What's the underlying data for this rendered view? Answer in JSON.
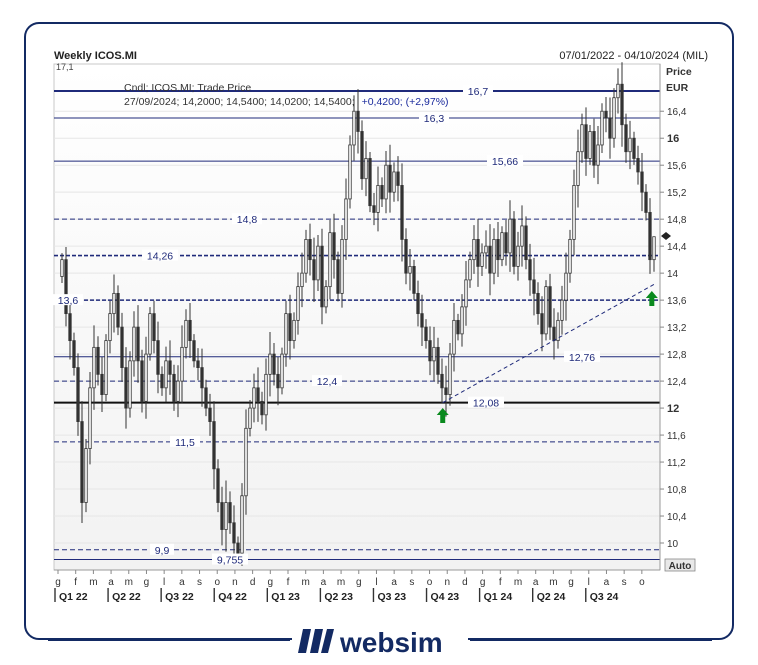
{
  "header": {
    "title": "Weekly ICOS.MI",
    "date_range": "07/01/2022 - 04/10/2024 (MIL)",
    "clipped_label": "17,1"
  },
  "info": {
    "line1": "Cndl; ICOS.MI; Trade Price",
    "line2_values": "27/09/2024; 14,2000; 14,5400; 14,0200; 14,5400;",
    "line2_change": "+0,4200; (+2,97%)"
  },
  "axis": {
    "price_label": "Price",
    "currency_label": "EUR",
    "auto_label": "Auto",
    "y_ticks": [
      {
        "label": "16,4",
        "value": 16.4,
        "bold": false
      },
      {
        "label": "16",
        "value": 16.0,
        "bold": true
      },
      {
        "label": "15,6",
        "value": 15.6,
        "bold": false
      },
      {
        "label": "15,2",
        "value": 15.2,
        "bold": false
      },
      {
        "label": "14,8",
        "value": 14.8,
        "bold": false
      },
      {
        "label": "14,4",
        "value": 14.4,
        "bold": false
      },
      {
        "label": "14",
        "value": 14.0,
        "bold": false
      },
      {
        "label": "13,6",
        "value": 13.6,
        "bold": false
      },
      {
        "label": "13,2",
        "value": 13.2,
        "bold": false
      },
      {
        "label": "12,8",
        "value": 12.8,
        "bold": false
      },
      {
        "label": "12,4",
        "value": 12.4,
        "bold": false
      },
      {
        "label": "12",
        "value": 12.0,
        "bold": true
      },
      {
        "label": "11,6",
        "value": 11.6,
        "bold": false
      },
      {
        "label": "11,2",
        "value": 11.2,
        "bold": false
      },
      {
        "label": "10,8",
        "value": 10.8,
        "bold": false
      },
      {
        "label": "10,4",
        "value": 10.4,
        "bold": false
      },
      {
        "label": "10",
        "value": 10.0,
        "bold": false
      }
    ],
    "months": [
      "g",
      "f",
      "m",
      "a",
      "m",
      "g",
      "l",
      "a",
      "s",
      "o",
      "n",
      "d",
      "g",
      "f",
      "m",
      "a",
      "m",
      "g",
      "l",
      "a",
      "s",
      "o",
      "n",
      "d",
      "g",
      "f",
      "m",
      "a",
      "m",
      "g",
      "l",
      "a",
      "s",
      "o"
    ],
    "quarters": [
      "Q1 22",
      "Q2 22",
      "Q3 22",
      "Q4 22",
      "Q1 23",
      "Q2 23",
      "Q3 23",
      "Q4 23",
      "Q1 24",
      "Q2 24",
      "Q3 24"
    ]
  },
  "levels": [
    {
      "value": 16.7,
      "label": "16,7",
      "style": "solid-thick"
    },
    {
      "value": 16.3,
      "label": "16,3",
      "style": "solid"
    },
    {
      "value": 15.66,
      "label": "15,66",
      "style": "solid"
    },
    {
      "value": 14.8,
      "label": "14,8",
      "style": "dashed"
    },
    {
      "value": 14.26,
      "label": "14,26",
      "style": "dashed-thick"
    },
    {
      "value": 13.6,
      "label": "13,6",
      "style": "dashed-thick"
    },
    {
      "value": 12.76,
      "label": "12,76",
      "style": "solid"
    },
    {
      "value": 12.4,
      "label": "12,4",
      "style": "dashed"
    },
    {
      "value": 12.08,
      "label": "12,08",
      "style": "solid-black"
    },
    {
      "value": 11.5,
      "label": "11,5",
      "style": "dashed"
    },
    {
      "value": 9.9,
      "label": "9,9",
      "style": "dashed"
    },
    {
      "value": 9.755,
      "label": "9,755",
      "style": "solid"
    }
  ],
  "chart_data": {
    "type": "candlestick",
    "title": "Weekly ICOS.MI",
    "ylabel": "Price",
    "unit": "EUR",
    "ylim": [
      9.6,
      17.1
    ],
    "x_start": "2022-01-07",
    "x_end": "2024-10-04",
    "last_candle": {
      "date": "27/09/2024",
      "open": 14.2,
      "high": 14.54,
      "low": 14.02,
      "close": 14.54,
      "change": 0.42,
      "change_pct": 2.97
    },
    "closes": [
      14.2,
      13.4,
      13.0,
      12.6,
      11.8,
      10.6,
      11.4,
      12.3,
      12.9,
      12.5,
      12.2,
      13.0,
      13.4,
      13.7,
      13.2,
      12.6,
      12.0,
      12.7,
      13.2,
      12.7,
      12.1,
      12.8,
      13.4,
      13.0,
      12.5,
      12.3,
      12.7,
      12.5,
      12.1,
      12.4,
      12.9,
      13.3,
      13.0,
      12.7,
      12.6,
      12.3,
      12.0,
      11.8,
      11.1,
      10.6,
      10.2,
      10.6,
      10.3,
      10.0,
      9.85,
      10.7,
      11.7,
      12.0,
      12.3,
      12.1,
      11.9,
      12.5,
      12.8,
      12.5,
      12.3,
      12.8,
      13.4,
      13.0,
      13.3,
      13.8,
      14.0,
      14.5,
      14.2,
      13.9,
      14.4,
      13.5,
      13.8,
      14.6,
      14.2,
      13.7,
      14.5,
      15.1,
      15.9,
      16.4,
      16.1,
      15.4,
      15.7,
      15.0,
      14.9,
      15.3,
      15.1,
      15.6,
      15.2,
      15.5,
      15.3,
      14.5,
      14.0,
      14.1,
      13.7,
      13.4,
      13.2,
      13.0,
      12.7,
      12.9,
      12.5,
      12.3,
      12.2,
      12.8,
      13.3,
      13.1,
      13.5,
      13.9,
      14.2,
      14.5,
      14.1,
      14.3,
      14.4,
      14.0,
      14.5,
      14.2,
      14.6,
      14.3,
      14.8,
      14.1,
      14.4,
      14.7,
      14.2,
      13.9,
      13.7,
      13.4,
      13.1,
      13.8,
      13.2,
      13.0,
      13.3,
      13.6,
      14.0,
      14.5,
      15.3,
      15.8,
      16.2,
      15.7,
      16.1,
      15.6,
      15.9,
      16.4,
      16.3,
      16.0,
      16.6,
      16.8,
      16.2,
      15.8,
      16.0,
      15.7,
      15.5,
      15.2,
      14.9,
      14.2,
      14.54
    ],
    "trendline": {
      "from": {
        "date": "2023-10-13",
        "value": 12.08
      },
      "to": {
        "date": "2024-10-04",
        "value": 13.85
      }
    },
    "arrows": [
      {
        "date": "2023-10-13",
        "direction": "up"
      },
      {
        "date": "2024-09-27",
        "direction": "up"
      }
    ]
  },
  "footer": {
    "brand": "websim"
  }
}
